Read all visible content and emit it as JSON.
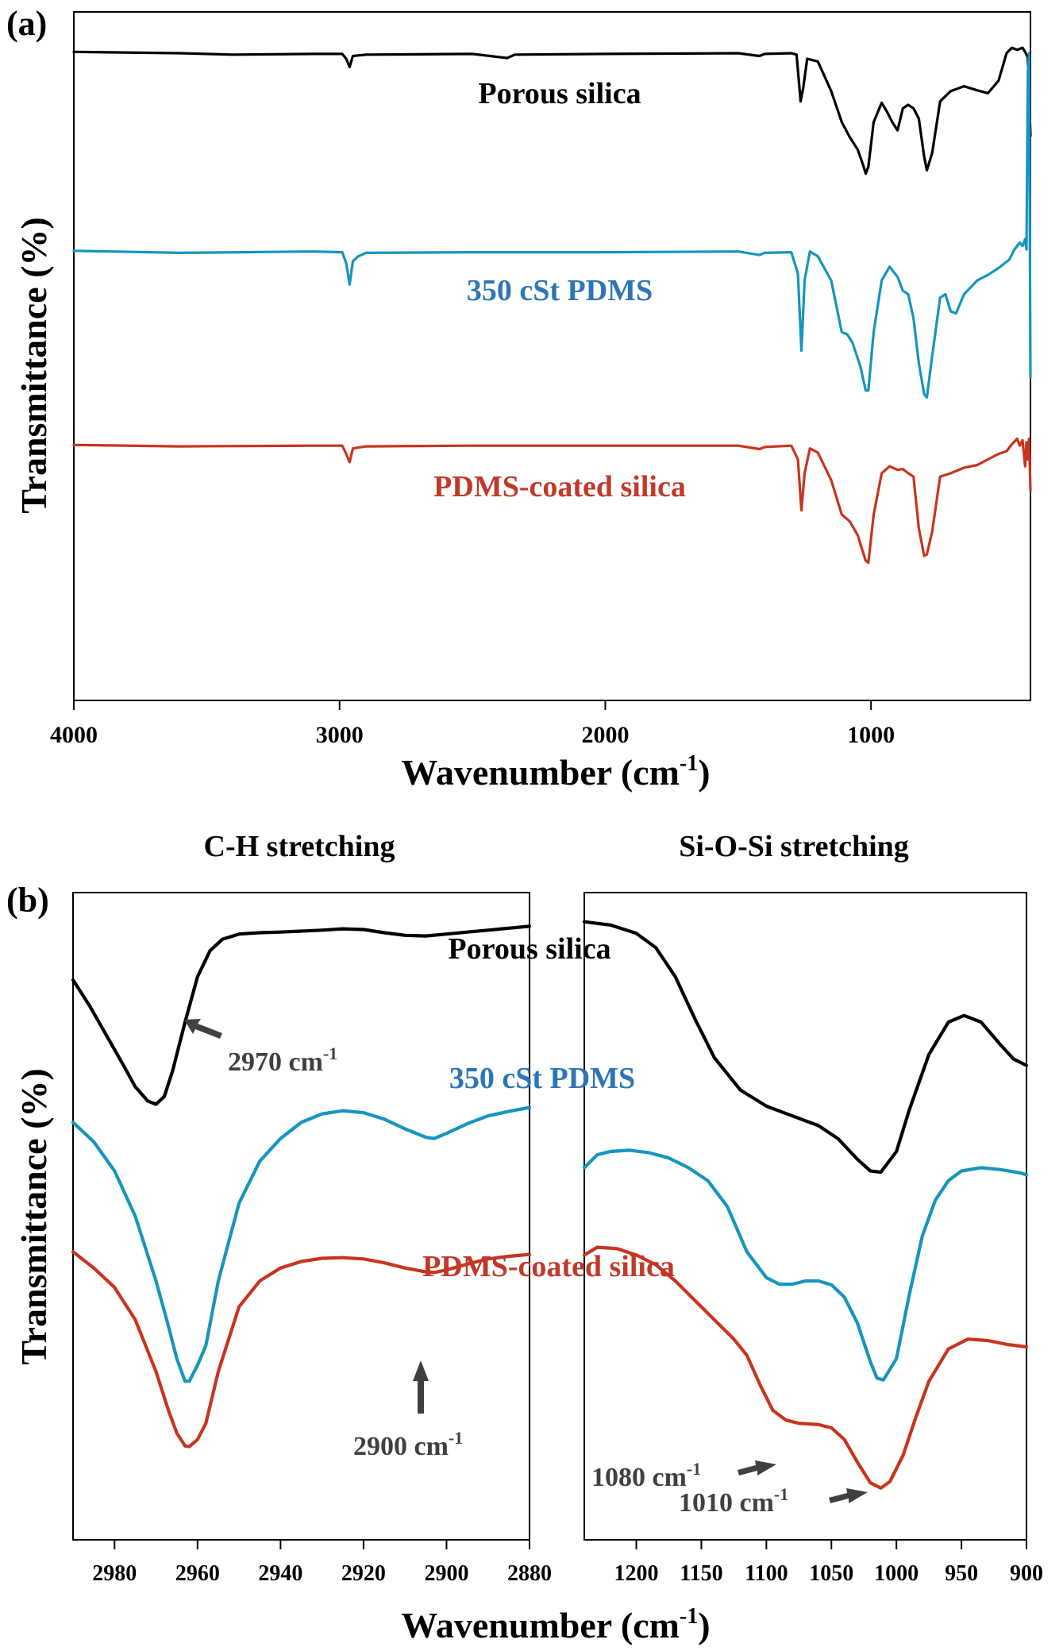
{
  "chart_data": [
    {
      "panel_label": "(a)",
      "type": "line",
      "title": "",
      "xlabel": "Wavenumber (cm",
      "xlabel_sup": "-1",
      "xlabel_close": ")",
      "ylabel": "Transmittance (%)",
      "xlim": [
        4000,
        400
      ],
      "ylim": [
        0,
        100
      ],
      "y_units": "offset a.u.",
      "xticks": [
        4000,
        3000,
        2000,
        1000
      ],
      "xtick_labels": [
        "4000",
        "3000",
        "2000",
        "1000"
      ],
      "grid": false,
      "series": [
        {
          "name": "Porous silica",
          "color": "#000000",
          "label_color": "#000000",
          "x": [
            4000,
            3600,
            3400,
            3100,
            2990,
            2975,
            2962,
            2950,
            2900,
            2500,
            2370,
            2340,
            2000,
            1500,
            1420,
            1400,
            1300,
            1280,
            1265,
            1255,
            1240,
            1200,
            1150,
            1110,
            1080,
            1050,
            1030,
            1020,
            1010,
            990,
            960,
            940,
            920,
            900,
            880,
            860,
            840,
            820,
            800,
            790,
            770,
            740,
            700,
            650,
            600,
            560,
            520,
            490,
            470,
            450,
            430,
            420,
            410,
            400
          ],
          "y": [
            94.2,
            94.0,
            93.8,
            93.9,
            93.9,
            93.2,
            92.0,
            93.6,
            93.8,
            93.9,
            93.3,
            93.8,
            93.9,
            94.0,
            93.6,
            93.9,
            94.0,
            93.8,
            87.0,
            89.0,
            93.2,
            92.8,
            88.5,
            84.0,
            81.8,
            80.0,
            77.8,
            76.5,
            77.5,
            84.0,
            86.8,
            85.5,
            84.0,
            82.8,
            86.0,
            86.5,
            86.0,
            84.5,
            79.0,
            77.0,
            79.5,
            87.0,
            88.5,
            89.2,
            88.6,
            88.2,
            90.0,
            94.0,
            94.8,
            94.5,
            94.8,
            94.2,
            93.4,
            82.0
          ]
        },
        {
          "name": "350 cSt PDMS",
          "color": "#1795BD",
          "label_color": "#2E75B6",
          "x": [
            4000,
            3600,
            3100,
            2990,
            2975,
            2962,
            2950,
            2930,
            2900,
            2500,
            2000,
            1500,
            1420,
            1400,
            1300,
            1275,
            1262,
            1250,
            1230,
            1200,
            1150,
            1110,
            1090,
            1070,
            1040,
            1020,
            1010,
            990,
            960,
            930,
            900,
            880,
            860,
            840,
            820,
            800,
            790,
            770,
            740,
            720,
            700,
            680,
            650,
            600,
            560,
            520,
            480,
            460,
            440,
            430,
            420,
            415,
            410,
            405,
            400
          ],
          "y": [
            65.3,
            65.0,
            65.2,
            65.1,
            63.5,
            60.4,
            63.8,
            64.5,
            65.0,
            65.1,
            65.1,
            65.2,
            64.7,
            65.0,
            65.1,
            62.0,
            50.8,
            61.0,
            65.2,
            64.5,
            61.0,
            53.5,
            53.2,
            52.0,
            48.5,
            45.0,
            45.0,
            53.5,
            61.0,
            63.0,
            61.5,
            59.5,
            59.0,
            55.5,
            49.0,
            44.5,
            44.0,
            50.0,
            58.5,
            59.0,
            56.5,
            56.2,
            59.0,
            61.0,
            61.8,
            62.8,
            64.0,
            65.5,
            66.5,
            66.0,
            67.0,
            65.5,
            91.0,
            94.0,
            47.0
          ]
        },
        {
          "name": "PDMS-coated silica",
          "color": "#C9341F",
          "label_color": "#C0392B",
          "x": [
            4000,
            3600,
            3100,
            2990,
            2975,
            2962,
            2950,
            2900,
            2500,
            2000,
            1500,
            1420,
            1400,
            1300,
            1275,
            1262,
            1250,
            1230,
            1200,
            1150,
            1110,
            1080,
            1050,
            1030,
            1020,
            1010,
            990,
            960,
            930,
            900,
            880,
            860,
            840,
            820,
            800,
            790,
            770,
            740,
            700,
            650,
            600,
            560,
            520,
            490,
            470,
            450,
            440,
            430,
            420,
            415,
            410,
            405,
            400
          ],
          "y": [
            37.1,
            36.9,
            37.0,
            37.0,
            35.8,
            34.6,
            36.6,
            36.9,
            37.0,
            37.0,
            37.0,
            36.5,
            36.8,
            37.0,
            35.0,
            27.6,
            33.0,
            36.6,
            36.0,
            32.0,
            27.0,
            26.0,
            24.0,
            21.5,
            20.3,
            20.0,
            27.0,
            33.0,
            34.0,
            33.5,
            33.6,
            33.0,
            32.5,
            25.0,
            21.0,
            21.2,
            24.5,
            32.5,
            33.0,
            33.8,
            34.2,
            35.0,
            35.8,
            36.2,
            37.2,
            38.0,
            37.0,
            37.8,
            34.0,
            37.5,
            35.0,
            38.0,
            30.5
          ]
        }
      ]
    },
    {
      "panel_label": "(b)",
      "type": "line",
      "title": "C-H stretching",
      "xlabel": "Wavenumber (cm",
      "xlabel_sup": "-1",
      "xlabel_close": ")",
      "ylabel": "Transmittance (%)",
      "xlim": [
        2990,
        2880
      ],
      "ylim": [
        0,
        100
      ],
      "y_units": "offset a.u.",
      "xticks": [
        2980,
        2960,
        2940,
        2920,
        2900,
        2880
      ],
      "xtick_labels": [
        "2980",
        "2960",
        "2940",
        "2920",
        "2900",
        "2880"
      ],
      "grid": false,
      "annotations": [
        {
          "text": "2970 cm",
          "sup": "-1",
          "x": 2970,
          "arrow": "up-left",
          "color": "#404040"
        },
        {
          "text": "2900 cm",
          "sup": "-1",
          "x": 2904,
          "arrow": "up",
          "color": "#404040"
        }
      ],
      "series": [
        {
          "name": "Porous silica",
          "color": "#000000",
          "x": [
            2990,
            2986,
            2982,
            2978,
            2975,
            2972,
            2970,
            2968,
            2966,
            2963,
            2960,
            2957,
            2954,
            2950,
            2945,
            2940,
            2930,
            2925,
            2920,
            2915,
            2910,
            2905,
            2900,
            2895,
            2890,
            2885,
            2880
          ],
          "y": [
            86.5,
            82.5,
            78.0,
            73.5,
            70.0,
            67.8,
            67.3,
            68.5,
            72.5,
            80.0,
            87.0,
            91.0,
            92.8,
            93.6,
            93.8,
            93.9,
            94.2,
            94.4,
            94.3,
            93.8,
            93.4,
            93.3,
            93.6,
            93.9,
            94.2,
            94.5,
            94.8
          ]
        },
        {
          "name": "350 cSt PDMS",
          "color": "#1795BD",
          "x": [
            2990,
            2985,
            2980,
            2975,
            2970,
            2967,
            2965,
            2963,
            2962,
            2960,
            2958,
            2955,
            2950,
            2945,
            2940,
            2935,
            2930,
            2925,
            2920,
            2915,
            2910,
            2905,
            2903,
            2900,
            2895,
            2890,
            2885,
            2880
          ],
          "y": [
            64.5,
            61.5,
            57.0,
            50.0,
            40.0,
            33.0,
            28.0,
            24.5,
            24.5,
            27.0,
            30.0,
            40.0,
            52.0,
            58.5,
            62.0,
            64.5,
            65.8,
            66.3,
            66.0,
            65.0,
            63.5,
            62.2,
            62.0,
            62.8,
            64.3,
            65.5,
            66.2,
            66.8
          ]
        },
        {
          "name": "PDMS-coated silica",
          "color": "#C9341F",
          "x": [
            2990,
            2985,
            2980,
            2975,
            2970,
            2967,
            2965,
            2963,
            2962,
            2960,
            2958,
            2955,
            2950,
            2945,
            2940,
            2935,
            2930,
            2925,
            2920,
            2915,
            2910,
            2905,
            2903,
            2900,
            2895,
            2890,
            2885,
            2880
          ],
          "y": [
            44.5,
            42.0,
            39.0,
            34.0,
            26.0,
            20.0,
            16.5,
            14.5,
            14.4,
            15.5,
            18.0,
            26.0,
            36.0,
            40.0,
            42.0,
            43.0,
            43.5,
            43.6,
            43.4,
            42.8,
            42.0,
            41.4,
            41.3,
            41.7,
            42.6,
            43.4,
            43.8,
            44.1
          ]
        }
      ]
    },
    {
      "panel_label": "",
      "type": "line",
      "title": "Si-O-Si stretching",
      "xlabel": "Wavenumber (cm",
      "xlabel_sup": "-1",
      "xlabel_close": ")",
      "ylabel": "",
      "xlim": [
        1240,
        900
      ],
      "ylim": [
        0,
        100
      ],
      "y_units": "offset a.u.",
      "xticks": [
        1200,
        1150,
        1100,
        1050,
        1000,
        950,
        900
      ],
      "xtick_labels": [
        "1200",
        "1150",
        "1100",
        "1050",
        "1000",
        "950",
        "900"
      ],
      "grid": false,
      "annotations": [
        {
          "text": "1080 cm",
          "sup": "-1",
          "x": 1085,
          "arrow": "right",
          "color": "#404040"
        },
        {
          "text": "1010 cm",
          "sup": "-1",
          "x": 1018,
          "arrow": "right",
          "color": "#404040"
        }
      ],
      "series": [
        {
          "name": "Porous silica",
          "color": "#000000",
          "x": [
            1240,
            1220,
            1200,
            1185,
            1170,
            1155,
            1140,
            1120,
            1100,
            1080,
            1060,
            1045,
            1030,
            1020,
            1012,
            1000,
            990,
            975,
            960,
            948,
            935,
            920,
            910,
            900
          ],
          "y": [
            95.5,
            95.0,
            93.7,
            91.5,
            87.0,
            80.5,
            74.5,
            69.5,
            67.0,
            65.5,
            64.0,
            62.0,
            58.8,
            57.0,
            56.8,
            60.0,
            66.5,
            75.0,
            80.0,
            81.0,
            80.0,
            76.5,
            74.3,
            73.3
          ]
        },
        {
          "name": "350 cSt PDMS",
          "color": "#1795BD",
          "x": [
            1240,
            1230,
            1220,
            1205,
            1190,
            1175,
            1160,
            1145,
            1130,
            1115,
            1100,
            1090,
            1080,
            1070,
            1060,
            1050,
            1040,
            1030,
            1020,
            1015,
            1010,
            1000,
            990,
            980,
            970,
            960,
            950,
            935,
            920,
            905,
            900
          ],
          "y": [
            57.5,
            59.5,
            60.0,
            60.2,
            59.8,
            59.0,
            57.5,
            55.5,
            51.5,
            44.5,
            40.5,
            39.5,
            39.5,
            40.0,
            40.0,
            39.4,
            37.5,
            33.5,
            27.5,
            25.0,
            24.7,
            28.0,
            38.0,
            47.0,
            52.5,
            55.5,
            57.0,
            57.5,
            57.2,
            56.7,
            56.4
          ]
        },
        {
          "name": "PDMS-coated silica",
          "color": "#C9341F",
          "x": [
            1240,
            1230,
            1215,
            1200,
            1185,
            1170,
            1155,
            1140,
            1125,
            1115,
            1105,
            1095,
            1085,
            1075,
            1060,
            1050,
            1040,
            1030,
            1020,
            1012,
            1005,
            995,
            985,
            975,
            960,
            945,
            930,
            915,
            900
          ],
          "y": [
            44.0,
            45.2,
            45.0,
            44.0,
            42.5,
            40.0,
            37.0,
            34.0,
            31.0,
            28.5,
            24.0,
            20.0,
            18.5,
            18.0,
            17.8,
            17.3,
            15.5,
            12.0,
            8.8,
            8.0,
            9.0,
            13.0,
            19.0,
            24.5,
            29.5,
            31.0,
            30.8,
            30.2,
            29.8
          ]
        }
      ]
    }
  ],
  "panel_b_series_labels": [
    {
      "text": "Porous silica",
      "color": "#000000"
    },
    {
      "text": "350 cSt PDMS",
      "color": "#2E75B6"
    },
    {
      "text": "PDMS-coated silica",
      "color": "#C0392B"
    }
  ]
}
